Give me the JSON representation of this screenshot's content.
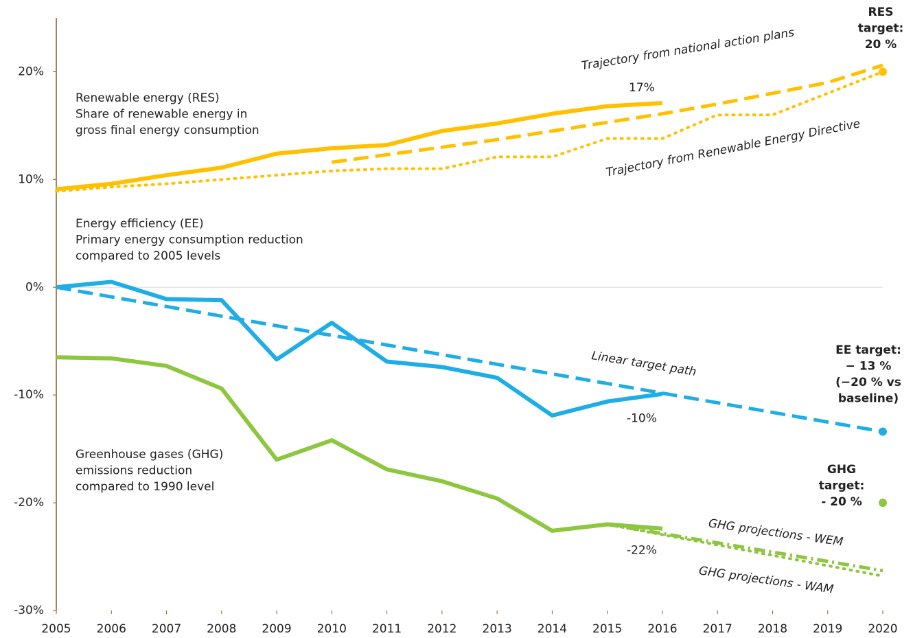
{
  "chart_data": {
    "type": "line",
    "xlim": [
      2005,
      2020
    ],
    "xticks": [
      2005,
      2006,
      2007,
      2008,
      2009,
      2010,
      2011,
      2012,
      2013,
      2014,
      2015,
      2016,
      2017,
      2018,
      2019,
      2020
    ],
    "ylim": [
      -30,
      25
    ],
    "yticks": [
      {
        "value": 20,
        "label": "20%"
      },
      {
        "value": 10,
        "label": "10%"
      },
      {
        "value": 0,
        "label": "0%"
      },
      {
        "value": -10,
        "label": "-10%"
      },
      {
        "value": -20,
        "label": "-20%"
      },
      {
        "value": -30,
        "label": "-30%"
      }
    ],
    "grid": false,
    "series": [
      {
        "color": "#FFC000",
        "style": "solid",
        "x": [
          2005,
          2006,
          2007,
          2008,
          2009,
          2010,
          2011,
          2012,
          2013,
          2014,
          2015,
          2016
        ],
        "values": [
          9.1,
          9.6,
          10.4,
          11.1,
          12.4,
          12.9,
          13.2,
          14.5,
          15.2,
          16.1,
          16.8,
          17.1
        ],
        "value_labels": [
          null,
          null,
          null,
          null,
          null,
          null,
          null,
          null,
          null,
          null,
          null,
          "17%"
        ]
      },
      {
        "color": "#FFC000",
        "style": "dashed",
        "x": [
          2010,
          2011,
          2012,
          2013,
          2014,
          2015,
          2016,
          2017,
          2018,
          2019,
          2020
        ],
        "values": [
          11.6,
          12.3,
          13.0,
          13.7,
          14.5,
          15.3,
          16.1,
          17.0,
          18.0,
          19.0,
          20.6
        ]
      },
      {
        "color": "#FFC000",
        "style": "dotted",
        "x": [
          2005,
          2006,
          2007,
          2008,
          2009,
          2010,
          2011,
          2012,
          2013,
          2014,
          2015,
          2016,
          2017,
          2018,
          2019,
          2020
        ],
        "values": [
          8.9,
          9.3,
          9.6,
          10.0,
          10.4,
          10.8,
          11.0,
          11.0,
          12.1,
          12.1,
          13.8,
          13.8,
          16.0,
          16.0,
          18.0,
          20.0
        ]
      },
      {
        "color": "#FFC000",
        "style": "marker",
        "x": [
          2020
        ],
        "values": [
          20
        ]
      },
      {
        "color": "#1EADE5",
        "style": "solid",
        "x": [
          2005,
          2006,
          2007,
          2008,
          2009,
          2010,
          2011,
          2012,
          2013,
          2014,
          2015,
          2016
        ],
        "values": [
          0,
          0.5,
          -1.1,
          -1.2,
          -6.7,
          -3.3,
          -6.9,
          -7.4,
          -8.4,
          -11.9,
          -10.6,
          -9.9
        ],
        "value_labels": [
          null,
          null,
          null,
          null,
          null,
          null,
          null,
          null,
          null,
          null,
          null,
          "-10%"
        ]
      },
      {
        "color": "#1EADE5",
        "style": "dashed",
        "x": [
          2005,
          2020
        ],
        "values": [
          0,
          -13.4
        ]
      },
      {
        "color": "#1EADE5",
        "style": "marker",
        "x": [
          2020
        ],
        "values": [
          -13.4
        ]
      },
      {
        "color": "#8DC63F",
        "style": "solid",
        "x": [
          2005,
          2006,
          2007,
          2008,
          2009,
          2010,
          2011,
          2012,
          2013,
          2014,
          2015,
          2016
        ],
        "values": [
          -6.5,
          -6.6,
          -7.3,
          -9.4,
          -16.0,
          -14.2,
          -16.9,
          -18.0,
          -19.6,
          -22.6,
          -22.0,
          -22.4
        ],
        "value_labels": [
          null,
          null,
          null,
          null,
          null,
          null,
          null,
          null,
          null,
          null,
          null,
          "-22%"
        ]
      },
      {
        "color": "#8DC63F",
        "style": "dashdot",
        "x": [
          2015,
          2020
        ],
        "values": [
          -22.0,
          -26.3
        ]
      },
      {
        "color": "#8DC63F",
        "style": "dotted",
        "x": [
          2015,
          2020
        ],
        "values": [
          -22.0,
          -26.8
        ]
      },
      {
        "color": "#8DC63F",
        "style": "marker",
        "x": [
          2020
        ],
        "values": [
          -20
        ]
      }
    ],
    "annotations": [
      {
        "lines": [
          "Renewable energy (RES)",
          "Share of renewable energy in",
          "gross final  energy consumption"
        ]
      },
      {
        "lines": [
          "Energy efficiency (EE)",
          "Primary energy consumption reduction",
          "compared to 2005 levels"
        ]
      },
      {
        "lines": [
          "Greenhouse gases (GHG)",
          "emissions reduction",
          "compared to 1990 level"
        ]
      },
      {
        "lines": [
          "Trajectory from national action plans"
        ]
      },
      {
        "lines": [
          "Trajectory from Renewable Energy Directive"
        ]
      },
      {
        "lines": [
          "Linear target path"
        ]
      },
      {
        "lines": [
          "GHG projections - WEM"
        ]
      },
      {
        "lines": [
          "GHG projections - WAM"
        ]
      },
      {
        "lines": [
          "RES",
          "target:",
          "20 %"
        ]
      },
      {
        "lines": [
          "EE target:",
          "− 13 %",
          "(−20 % vs",
          "baseline)"
        ]
      },
      {
        "lines": [
          "GHG",
          "target:",
          "- 20 %"
        ]
      }
    ]
  }
}
